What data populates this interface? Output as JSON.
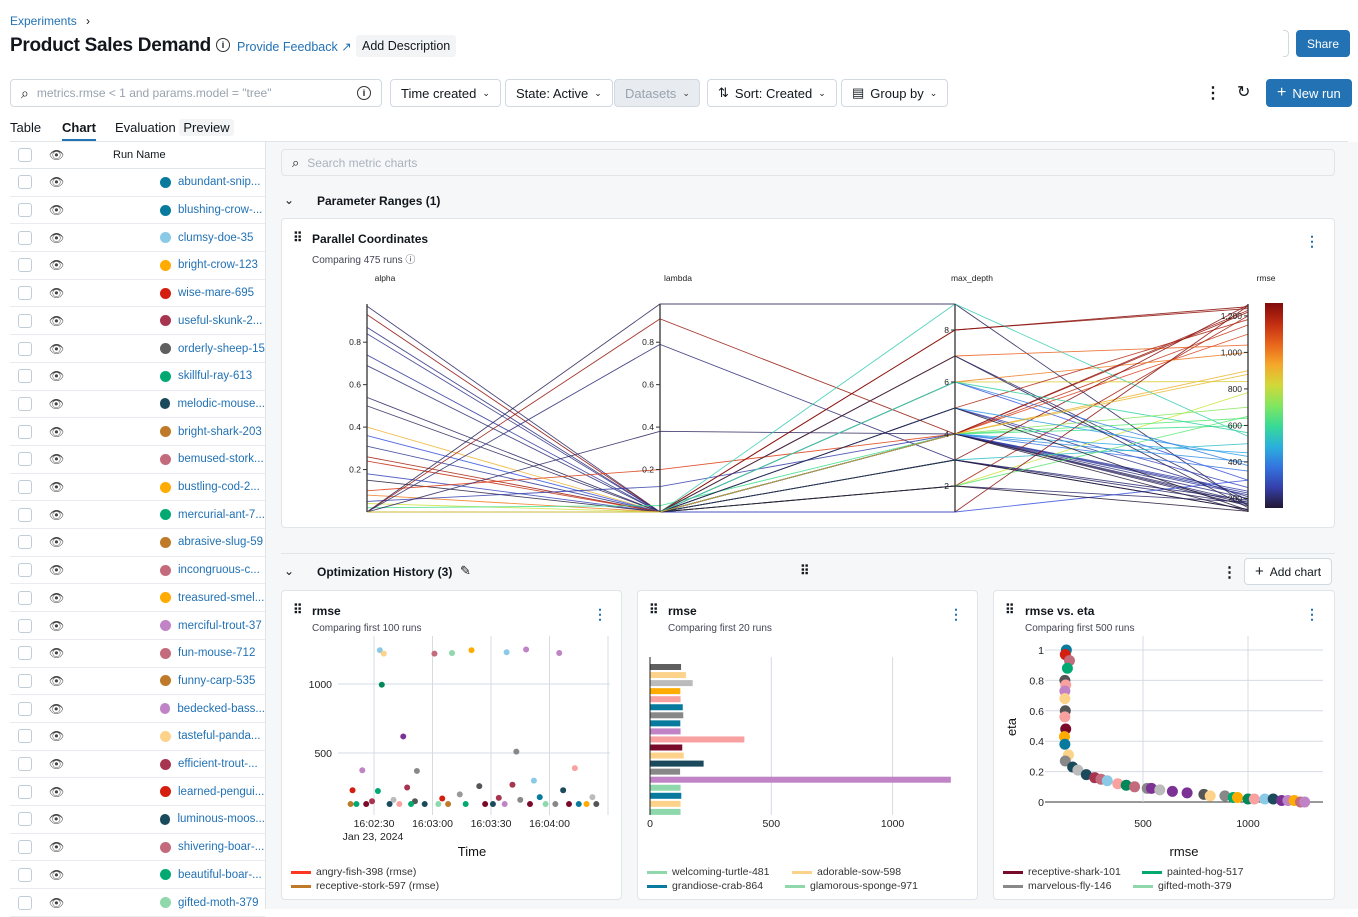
{
  "breadcrumb": {
    "experiments": "Experiments",
    "sep": "›"
  },
  "header": {
    "title": "Product Sales Demand",
    "feedback": "Provide Feedback",
    "add_description": "Add Description",
    "share": "Share"
  },
  "toolbar": {
    "search_placeholder": "metrics.rmse < 1 and params.model = \"tree\"",
    "time_created": "Time created",
    "state": "State: Active",
    "datasets": "Datasets",
    "sort": "Sort: Created",
    "group_by": "Group by",
    "new_run": "New run"
  },
  "tabs": [
    {
      "label": "Table"
    },
    {
      "label": "Chart",
      "active": true
    },
    {
      "label": "Evaluation",
      "badge": "Preview"
    }
  ],
  "runs_table": {
    "header": "Run Name",
    "runs": [
      {
        "name": "abundant-snip...",
        "color": "#077a9d"
      },
      {
        "name": "blushing-crow-...",
        "color": "#077a9d"
      },
      {
        "name": "clumsy-doe-35",
        "color": "#8bcae7"
      },
      {
        "name": "bright-crow-123",
        "color": "#ffab00"
      },
      {
        "name": "wise-mare-695",
        "color": "#d41e10"
      },
      {
        "name": "useful-skunk-2...",
        "color": "#a8354f"
      },
      {
        "name": "orderly-sheep-15",
        "color": "#5f5f5f"
      },
      {
        "name": "skillful-ray-613",
        "color": "#00a972"
      },
      {
        "name": "melodic-mouse...",
        "color": "#1b4a5c"
      },
      {
        "name": "bright-shark-203",
        "color": "#be7a28"
      },
      {
        "name": "bemused-stork...",
        "color": "#c36b7c"
      },
      {
        "name": "bustling-cod-2...",
        "color": "#ffab00"
      },
      {
        "name": "mercurial-ant-7...",
        "color": "#00a972"
      },
      {
        "name": "abrasive-slug-59",
        "color": "#be7a28"
      },
      {
        "name": "incongruous-c...",
        "color": "#c36b7c"
      },
      {
        "name": "treasured-smel...",
        "color": "#ffab00"
      },
      {
        "name": "merciful-trout-37",
        "color": "#c083c6"
      },
      {
        "name": "fun-mouse-712",
        "color": "#c36b7c"
      },
      {
        "name": "funny-carp-535",
        "color": "#be7a28"
      },
      {
        "name": "bedecked-bass...",
        "color": "#c083c6"
      },
      {
        "name": "tasteful-panda...",
        "color": "#fdd38c"
      },
      {
        "name": "efficient-trout-...",
        "color": "#a8354f"
      },
      {
        "name": "learned-pengui...",
        "color": "#d41e10"
      },
      {
        "name": "luminous-moos...",
        "color": "#1b4a5c"
      },
      {
        "name": "shivering-boar-...",
        "color": "#c36b7c"
      },
      {
        "name": "beautiful-boar-...",
        "color": "#00a972"
      },
      {
        "name": "gifted-moth-379",
        "color": "#8fd8ac"
      }
    ]
  },
  "charts_search_placeholder": "Search metric charts",
  "sections": {
    "param_ranges": "Parameter Ranges (1)",
    "opt_history": "Optimization History (3)",
    "add_chart": "Add chart"
  },
  "chart_data": [
    {
      "type": "parallel-coordinates",
      "title": "Parallel Coordinates",
      "subtitle": "Comparing 475 runs",
      "axes": [
        "alpha",
        "lambda",
        "max_depth",
        "rmse"
      ],
      "ticks": {
        "alpha": [
          "0.2",
          "0.4",
          "0.6",
          "0.8"
        ],
        "lambda": [
          "0.2",
          "0.4",
          "0.6",
          "0.8"
        ],
        "max_depth": [
          "2",
          "4",
          "6",
          "8"
        ],
        "rmse": [
          "200",
          "400",
          "600",
          "800",
          "1,000",
          "1,200"
        ]
      },
      "ranges": {
        "alpha": [
          0,
          0.98
        ],
        "lambda": [
          0,
          0.98
        ],
        "max_depth": [
          1,
          9
        ],
        "rmse": [
          126,
          1265
        ]
      },
      "colorscale": "turbo",
      "color_by": "rmse",
      "lines": [
        [
          0.97,
          0,
          4,
          180
        ],
        [
          0.93,
          0,
          8,
          1240
        ],
        [
          0.87,
          0,
          4,
          200
        ],
        [
          0.84,
          0,
          5,
          210
        ],
        [
          0.74,
          0,
          4,
          230
        ],
        [
          0.69,
          0,
          7,
          190
        ],
        [
          0.54,
          0,
          3,
          170
        ],
        [
          0.5,
          0,
          4,
          160
        ],
        [
          0.4,
          0,
          4,
          900
        ],
        [
          0.36,
          0,
          6,
          300
        ],
        [
          0.31,
          0,
          4,
          220
        ],
        [
          0.26,
          0,
          2,
          1200
        ],
        [
          0.24,
          0,
          4,
          1150
        ],
        [
          0.18,
          0,
          5,
          260
        ],
        [
          0.15,
          0,
          3,
          140
        ],
        [
          0.1,
          0.2,
          4,
          1100
        ],
        [
          0.08,
          0,
          6,
          1000
        ],
        [
          0.05,
          0.12,
          4,
          240
        ],
        [
          0.04,
          0,
          2,
          780
        ],
        [
          0.02,
          0.03,
          4,
          600
        ],
        [
          0,
          0.98,
          9,
          160
        ],
        [
          0,
          0.91,
          4,
          1230
        ],
        [
          0,
          0.79,
          3,
          190
        ],
        [
          0,
          0.38,
          4,
          170
        ],
        [
          0,
          0,
          9,
          540
        ],
        [
          0,
          0,
          8,
          1250
        ],
        [
          0,
          0,
          7,
          1040
        ],
        [
          0,
          0,
          6,
          840
        ],
        [
          0,
          0,
          5,
          1180
        ],
        [
          0,
          0,
          4,
          1220
        ],
        [
          0,
          0,
          4,
          700
        ],
        [
          0,
          0,
          4,
          640
        ],
        [
          0,
          0,
          4,
          450
        ],
        [
          0,
          0,
          4,
          400
        ],
        [
          0,
          0,
          4,
          350
        ],
        [
          0,
          0,
          3,
          1260
        ],
        [
          0,
          0,
          3,
          500
        ],
        [
          0,
          0,
          2,
          650
        ],
        [
          0,
          0,
          2,
          180
        ],
        [
          0,
          0,
          1,
          1255
        ],
        [
          0,
          0,
          1,
          300
        ],
        [
          0,
          0,
          5,
          430
        ],
        [
          0,
          0,
          6,
          380
        ],
        [
          0,
          0,
          7,
          150
        ],
        [
          0,
          0,
          4,
          130
        ],
        [
          0,
          0,
          3,
          140
        ],
        [
          0,
          0,
          2,
          130
        ],
        [
          0,
          0,
          5,
          135
        ],
        [
          0,
          0,
          6,
          560
        ],
        [
          0,
          0,
          4,
          880
        ]
      ]
    },
    {
      "type": "scatter",
      "title": "rmse",
      "subtitle": "Comparing first 100 runs",
      "xlabel": "Time",
      "ylabel": "",
      "x_ticks": [
        "16:02:30",
        "16:03:00",
        "16:03:30",
        "16:04:00"
      ],
      "x_date_label": "Jan 23, 2024",
      "y_ticks": [
        500,
        1000
      ],
      "ylim": [
        0,
        1300
      ],
      "points": [
        [
          "16:02:19",
          230,
          "#d41e10"
        ],
        [
          "16:02:24",
          375,
          "#c083c6"
        ],
        [
          "16:02:33",
          1245,
          "#8bcae7"
        ],
        [
          "16:02:35",
          1220,
          "#fdd38c"
        ],
        [
          "16:02:34",
          995,
          "#00875a"
        ],
        [
          "16:02:32",
          225,
          "#00a972"
        ],
        [
          "16:02:45",
          620,
          "#7b3294"
        ],
        [
          "16:02:47",
          250,
          "#a8354f"
        ],
        [
          "16:02:52",
          370,
          "#888"
        ],
        [
          "16:03:01",
          1220,
          "#c36b7c"
        ],
        [
          "16:03:05",
          170,
          "#d41e10"
        ],
        [
          "16:03:10",
          1225,
          "#8fd8ac"
        ],
        [
          "16:03:20",
          1245,
          "#ffab00"
        ],
        [
          "16:03:24",
          260,
          "#555"
        ],
        [
          "16:03:14",
          200,
          "#999"
        ],
        [
          "16:03:38",
          1230,
          "#8bcae7"
        ],
        [
          "16:03:43",
          510,
          "#888"
        ],
        [
          "16:03:41",
          270,
          "#a8354f"
        ],
        [
          "16:03:48",
          1250,
          "#c083c6"
        ],
        [
          "16:03:52",
          300,
          "#8bcae7"
        ],
        [
          "16:03:55",
          180,
          "#077a9d"
        ],
        [
          "16:04:05",
          1225,
          "#c083c6"
        ],
        [
          "16:04:07",
          230,
          "#1b4a5c"
        ],
        [
          "16:04:13",
          390,
          "#f9a0a0"
        ],
        [
          "16:04:22",
          180,
          "#bbb"
        ],
        [
          "16:03:34",
          175,
          "#a8354f"
        ],
        [
          "16:03:45",
          160,
          "#888"
        ],
        [
          "16:02:29",
          150,
          "#a8354f"
        ],
        [
          "16:02:40",
          160,
          "#bbb"
        ],
        [
          "16:02:51",
          150,
          "#555"
        ],
        [
          "16:02:18",
          130,
          "#be7a28"
        ],
        [
          "16:02:21",
          130,
          "#00a972"
        ],
        [
          "16:02:26",
          130,
          "#7a0a2a"
        ],
        [
          "16:02:38",
          130,
          "#1b4a5c"
        ],
        [
          "16:02:43",
          130,
          "#f9a0a0"
        ],
        [
          "16:02:49",
          130,
          "#00a972"
        ],
        [
          "16:02:56",
          130,
          "#1b4a5c"
        ],
        [
          "16:03:03",
          130,
          "#8fd8ac"
        ],
        [
          "16:03:08",
          130,
          "#be7a28"
        ],
        [
          "16:03:17",
          130,
          "#00a972"
        ],
        [
          "16:03:27",
          130,
          "#7a0a2a"
        ],
        [
          "16:03:31",
          130,
          "#1b4a5c"
        ],
        [
          "16:03:37",
          130,
          "#c083c6"
        ],
        [
          "16:03:50",
          130,
          "#7a0a2a"
        ],
        [
          "16:03:58",
          130,
          "#8fd8ac"
        ],
        [
          "16:04:03",
          130,
          "#888"
        ],
        [
          "16:04:10",
          130,
          "#7a0a2a"
        ],
        [
          "16:04:15",
          130,
          "#077a9d"
        ],
        [
          "16:04:19",
          130,
          "#ffab00"
        ],
        [
          "16:04:24",
          130,
          "#555"
        ]
      ],
      "legend": [
        {
          "name": "angry-fish-398 (rmse)",
          "color": "#ff3621"
        },
        {
          "name": "receptive-stork-597 (rmse)",
          "color": "#be7a28"
        }
      ]
    },
    {
      "type": "bar",
      "orientation": "horizontal",
      "title": "rmse",
      "subtitle": "Comparing first 20 runs",
      "x_ticks": [
        0,
        500,
        1000
      ],
      "xlim": [
        0,
        1260
      ],
      "values": [
        128,
        148,
        176,
        125,
        126,
        135,
        137,
        125,
        126,
        389,
        133,
        139,
        221,
        124,
        1240,
        126,
        129,
        126,
        126
      ],
      "colors": [
        "#5f5f5f",
        "#fdd38c",
        "#bbbbbb",
        "#ffab00",
        "#f9a0a0",
        "#077a9d",
        "#888888",
        "#077a9d",
        "#c083c6",
        "#f9a0a0",
        "#7a0a2a",
        "#fdd38c",
        "#1b4a5c",
        "#888888",
        "#c083c6",
        "#8fd8ac",
        "#077a9d",
        "#fdd38c",
        "#8fd8ac"
      ],
      "legend": [
        {
          "name": "welcoming-turtle-481",
          "color": "#8fd8ac"
        },
        {
          "name": "adorable-sow-598",
          "color": "#fdd38c"
        },
        {
          "name": "grandiose-crab-864",
          "color": "#077a9d"
        },
        {
          "name": "glamorous-sponge-971",
          "color": "#8fd8ac"
        }
      ]
    },
    {
      "type": "scatter",
      "title": "rmse vs. eta",
      "subtitle": "Comparing first 500 runs",
      "xlabel": "rmse",
      "ylabel": "eta",
      "x_ticks": [
        500,
        1000
      ],
      "y_ticks": [
        0,
        0.2,
        0.4,
        0.6,
        0.8,
        1
      ],
      "xlim": [
        0,
        1330
      ],
      "ylim": [
        0,
        1
      ],
      "points": [
        [
          135,
          1,
          "#077a9d"
        ],
        [
          130,
          0.97,
          "#d41e10"
        ],
        [
          150,
          0.93,
          "#c36b7c"
        ],
        [
          140,
          0.88,
          "#00a972"
        ],
        [
          128,
          0.8,
          "#555"
        ],
        [
          132,
          0.77,
          "#f9a0a0"
        ],
        [
          128,
          0.73,
          "#c083c6"
        ],
        [
          128,
          0.68,
          "#fdd38c"
        ],
        [
          130,
          0.6,
          "#555"
        ],
        [
          128,
          0.56,
          "#f9a0a0"
        ],
        [
          132,
          0.48,
          "#7a0a2a"
        ],
        [
          126,
          0.43,
          "#ffab00"
        ],
        [
          128,
          0.38,
          "#077a9d"
        ],
        [
          145,
          0.31,
          "#fdd38c"
        ],
        [
          130,
          0.27,
          "#888"
        ],
        [
          165,
          0.23,
          "#1b4a5c"
        ],
        [
          190,
          0.21,
          "#bbb"
        ],
        [
          230,
          0.18,
          "#1b4a5c"
        ],
        [
          270,
          0.16,
          "#a8354f"
        ],
        [
          300,
          0.15,
          "#c36b7c"
        ],
        [
          330,
          0.14,
          "#8bcae7"
        ],
        [
          380,
          0.12,
          "#f9a0a0"
        ],
        [
          420,
          0.11,
          "#00875a"
        ],
        [
          460,
          0.1,
          "#c36b7c"
        ],
        [
          520,
          0.09,
          "#888"
        ],
        [
          540,
          0.09,
          "#7b3294"
        ],
        [
          580,
          0.08,
          "#bbb"
        ],
        [
          640,
          0.07,
          "#7b3294"
        ],
        [
          710,
          0.06,
          "#7b3294"
        ],
        [
          790,
          0.05,
          "#555"
        ],
        [
          820,
          0.04,
          "#fdd38c"
        ],
        [
          890,
          0.04,
          "#888"
        ],
        [
          930,
          0.03,
          "#00a972"
        ],
        [
          950,
          0.03,
          "#ffab00"
        ],
        [
          1000,
          0.02,
          "#00875a"
        ],
        [
          1030,
          0.02,
          "#f9a0a0"
        ],
        [
          1080,
          0.02,
          "#8bcae7"
        ],
        [
          1120,
          0.02,
          "#1b4a5c"
        ],
        [
          1160,
          0.01,
          "#7b3294"
        ],
        [
          1190,
          0.01,
          "#c083c6"
        ],
        [
          1220,
          0.01,
          "#ffab00"
        ],
        [
          1250,
          0,
          "#c36b7c"
        ],
        [
          1270,
          0,
          "#c083c6"
        ]
      ],
      "legend": [
        {
          "name": "receptive-shark-101",
          "color": "#7a0a2a"
        },
        {
          "name": "painted-hog-517",
          "color": "#00a972"
        },
        {
          "name": "marvelous-fly-146",
          "color": "#888888"
        },
        {
          "name": "gifted-moth-379",
          "color": "#8fd8ac"
        }
      ]
    }
  ]
}
